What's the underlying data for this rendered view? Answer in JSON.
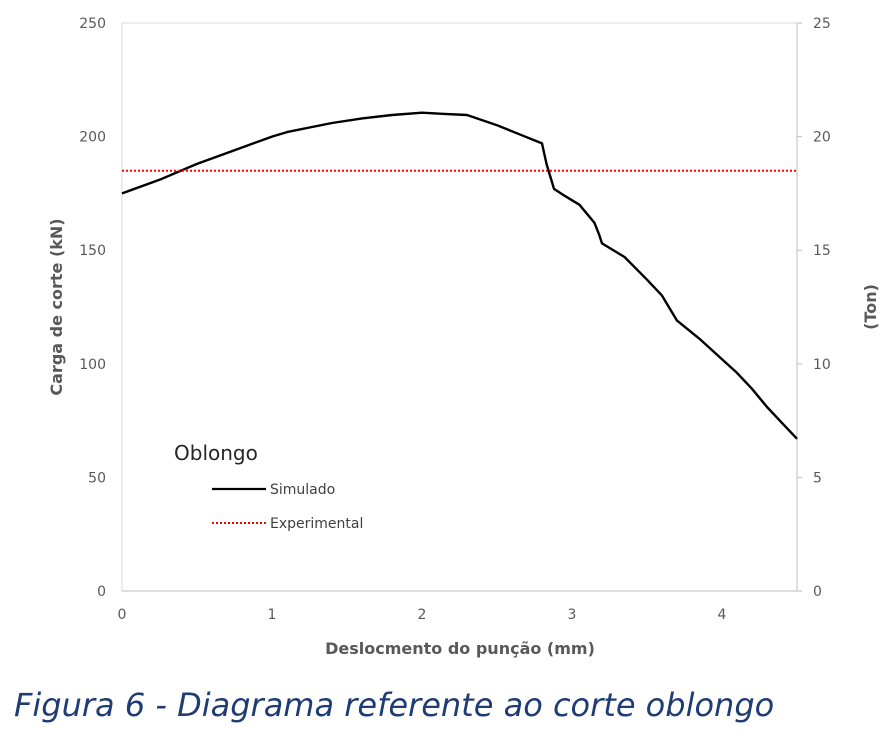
{
  "chart_data": {
    "type": "line",
    "xlabel": "Deslocmento do punção (mm)",
    "ylabel": "Carga de corte (kN)",
    "y2label": "(Ton)",
    "xlim": [
      0,
      4.5
    ],
    "ylim": [
      0,
      250
    ],
    "y2lim": [
      0,
      25
    ],
    "x_ticks": [
      "0",
      "1",
      "2",
      "3",
      "4"
    ],
    "y_ticks": [
      "0",
      "50",
      "100",
      "150",
      "200",
      "250"
    ],
    "y2_ticks": [
      "0",
      "5",
      "10",
      "15",
      "20",
      "25"
    ],
    "legend_title": "Oblongo",
    "series": [
      {
        "name": "Simulado",
        "color": "#000000",
        "style": "solid",
        "x": [
          0,
          0.25,
          0.5,
          0.75,
          1.0,
          1.1,
          1.25,
          1.4,
          1.6,
          1.8,
          2.0,
          2.15,
          2.3,
          2.5,
          2.65,
          2.8,
          2.83,
          2.88,
          2.95,
          3.05,
          3.15,
          3.18,
          3.2,
          3.35,
          3.5,
          3.6,
          3.7,
          3.85,
          4.0,
          4.1,
          4.2,
          4.3,
          4.4,
          4.5
        ],
        "y": [
          175,
          181,
          188,
          194,
          200,
          202,
          204,
          206,
          208,
          209.5,
          210.5,
          210,
          209.5,
          205,
          201,
          197,
          188,
          177,
          174,
          170,
          162,
          157,
          153,
          147,
          137,
          130,
          119,
          111,
          102,
          96,
          89,
          81,
          74,
          67
        ]
      },
      {
        "name": "Experimental",
        "color": "#ff0000",
        "style": "dotted",
        "x": [
          0,
          4.5
        ],
        "y": [
          185,
          185
        ]
      }
    ]
  },
  "caption": "Figura 6 - Diagrama referente ao corte oblongo"
}
